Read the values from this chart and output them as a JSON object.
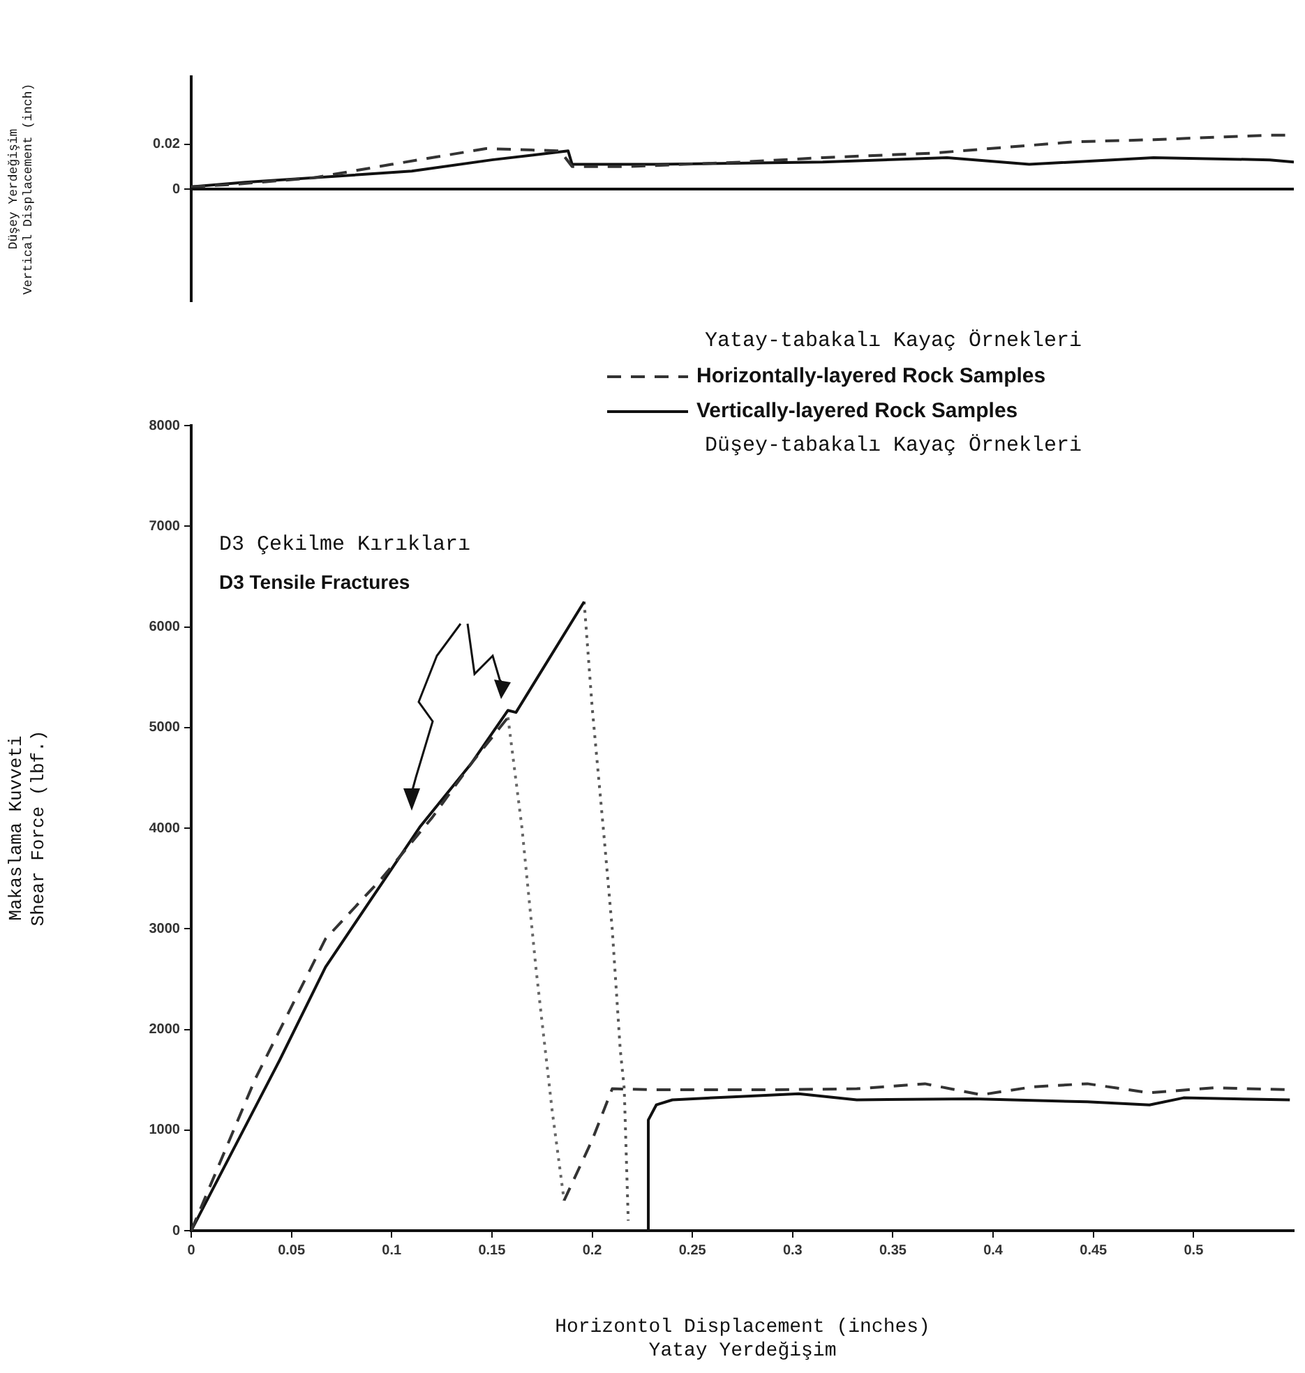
{
  "chart_data": [
    {
      "type": "line",
      "ylabel": "Düşey Yerdeğişim\nVertical Displacement (inch)",
      "xlim": [
        0,
        0.55
      ],
      "ylim": [
        -0.05,
        0.05
      ],
      "yticks": [
        0,
        0.02
      ],
      "tick_labels": "y",
      "grid": false,
      "legend": false,
      "marker": "none",
      "ref_lines": [
        {
          "axis": "y",
          "value": 0,
          "color": "#111111",
          "line_style": "solid"
        }
      ],
      "series": [
        {
          "color": "#333333",
          "line_style": "dashed",
          "x": [
            0,
            0.02,
            0.061,
            0.1,
            0.147,
            0.184,
            0.19,
            0.217,
            0.274,
            0.315,
            0.37,
            0.398,
            0.44,
            0.48,
            0.538,
            0.55
          ],
          "values": [
            0.001,
            0.002,
            0.005,
            0.011,
            0.018,
            0.017,
            0.01,
            0.01,
            0.012,
            0.014,
            0.016,
            0.018,
            0.021,
            0.022,
            0.024,
            0.024
          ]
        },
        {
          "color": "#111111",
          "line_style": "solid",
          "x": [
            0,
            0.027,
            0.11,
            0.15,
            0.188,
            0.19,
            0.233,
            0.315,
            0.377,
            0.418,
            0.48,
            0.538,
            0.55
          ],
          "values": [
            0.001,
            0.003,
            0.008,
            0.013,
            0.017,
            0.011,
            0.011,
            0.012,
            0.014,
            0.011,
            0.014,
            0.013,
            0.012
          ]
        }
      ]
    },
    {
      "type": "line",
      "xlabel": "Horizontol Displacement (inches)\nYatay Yerdeğişim",
      "ylabel": "Makaslama Kuvveti\nShear Force (lbf.)",
      "xlim": [
        0,
        0.55
      ],
      "ylim": [
        0,
        8000
      ],
      "xticks": [
        0,
        0.05,
        0.1,
        0.15,
        0.2,
        0.25,
        0.3,
        0.35,
        0.4,
        0.45,
        0.5
      ],
      "yticks": [
        0,
        1000,
        2000,
        3000,
        4000,
        5000,
        6000,
        7000,
        8000
      ],
      "grid": false,
      "legend": "top right",
      "marker": "none",
      "annotations": [
        "D3 Çekilme Kırıkları",
        "D3 Tensile Fractures",
        "Yatay-tabakalı Kayaç Örnekleri",
        "Düşey-tabakalı Kayaç Örnekleri"
      ],
      "series": [
        {
          "name": "Horizontally-layered Rock Samples",
          "color": "#333333",
          "line_style": "dashed",
          "x": [
            0,
            0.032,
            0.067,
            0.095,
            0.12,
            0.14,
            0.158,
            null,
            0.186,
            0.2,
            0.21,
            0.23,
            0.26,
            0.29,
            0.332,
            0.366,
            0.394,
            0.42,
            0.447,
            0.478,
            0.51,
            0.548
          ],
          "values": [
            0,
            1510,
            2900,
            3500,
            4100,
            4650,
            5100,
            null,
            300,
            900,
            1410,
            1400,
            1400,
            1400,
            1410,
            1460,
            1350,
            1430,
            1460,
            1370,
            1420,
            1400
          ]
        },
        {
          "name": "Vertically-layered Rock Samples",
          "color": "#111111",
          "line_style": "solid",
          "x": [
            0,
            0.044,
            0.067,
            0.09,
            0.114,
            0.14,
            0.158,
            0.162,
            0.196,
            null,
            0.228,
            0.228,
            0.232,
            0.24,
            0.27,
            0.303,
            0.332,
            0.39,
            0.447,
            0.478,
            0.495,
            0.548
          ],
          "values": [
            0,
            1690,
            2620,
            3300,
            4010,
            4650,
            5170,
            5150,
            6250,
            null,
            0,
            1100,
            1250,
            1300,
            1330,
            1360,
            1300,
            1310,
            1280,
            1250,
            1320,
            1300
          ]
        },
        {
          "color": "#666666",
          "line_style": "dotted",
          "x": [
            0.158,
            0.165,
            0.172,
            0.18,
            0.186
          ],
          "values": [
            5100,
            4000,
            2600,
            1200,
            300
          ]
        },
        {
          "color": "#555555",
          "line_style": "dotted",
          "x": [
            0.196,
            0.2,
            0.206,
            0.21,
            0.214,
            0.216,
            0.218
          ],
          "values": [
            6250,
            5200,
            3900,
            3000,
            1800,
            1410,
            100
          ]
        }
      ]
    }
  ]
}
